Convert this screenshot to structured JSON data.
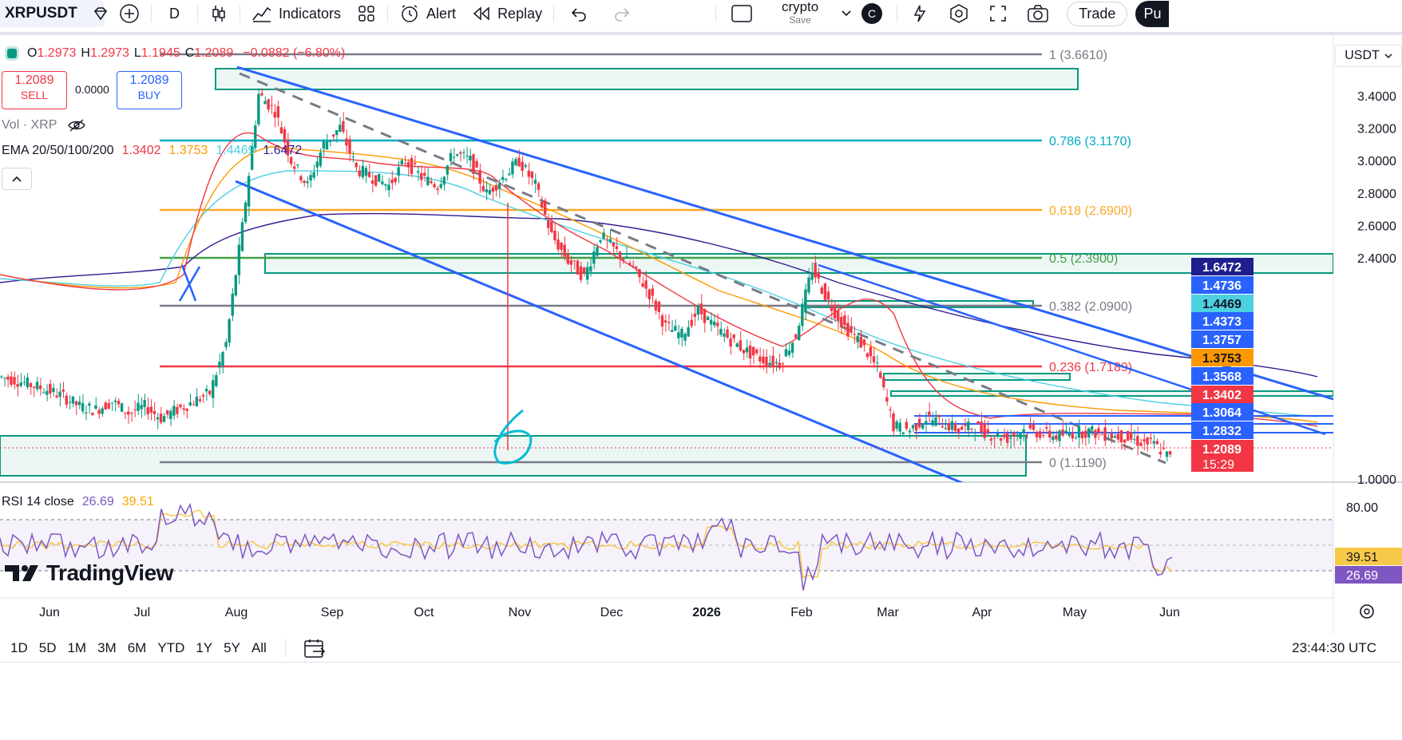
{
  "toolbar": {
    "symbol": "XRPUSDT",
    "interval": "D",
    "indicators": "Indicators",
    "alert": "Alert",
    "replay": "Replay",
    "layout_name": "crypto",
    "layout_save": "Save",
    "avatar": "C",
    "trade": "Trade",
    "publish": "Pu"
  },
  "legend": {
    "ohlc": [
      {
        "k": "O",
        "v": "1.2973"
      },
      {
        "k": "H",
        "v": "1.2973"
      },
      {
        "k": "L",
        "v": "1.1945"
      },
      {
        "k": "C",
        "v": "1.2089"
      }
    ],
    "change": "−0.0882 (−6.80%)",
    "sell_price": "1.2089",
    "sell_label": "SELL",
    "spread": "0.0000",
    "buy_price": "1.2089",
    "buy_label": "BUY",
    "vol": "Vol · XRP",
    "ema_label": "EMA 20/50/100/200",
    "ema_values": [
      {
        "v": "1.3402",
        "color": "#f23645"
      },
      {
        "v": "1.3753",
        "color": "#ff9800"
      },
      {
        "v": "1.4469",
        "color": "#4dd0e1"
      },
      {
        "v": "1.6472",
        "color": "#311b92"
      }
    ],
    "rsi_label": "RSI 14 close",
    "rsi_value": "26.69",
    "rsi_ma_value": "39.51"
  },
  "currency": "USDT",
  "colors": {
    "down": "#f23645",
    "up": "#089981",
    "channel": "#2962ff",
    "zone": "#089981",
    "ema20": "#f23645",
    "ema50": "#ff9800",
    "ema100": "#4dd0e1",
    "ema200": "#311b92",
    "rsi": "#7e57c2",
    "rsi_ma": "#f7c948"
  },
  "chart_data": {
    "type": "candlestick",
    "symbol": "XRPUSDT",
    "timeframe": "1D",
    "y_ticks": [
      3.4,
      3.2,
      3.0,
      2.8,
      2.6,
      2.4,
      1.0
    ],
    "y_tick_labels": [
      "3.4000",
      "3.2000",
      "3.0000",
      "2.8000",
      "2.6000",
      "2.4000",
      "1.0000"
    ],
    "x_labels": [
      "Jun",
      "Jul",
      "Aug",
      "Sep",
      "Oct",
      "Nov",
      "Dec",
      "2026",
      "Feb",
      "Mar",
      "Apr",
      "May",
      "Jun"
    ],
    "price_path": [
      [
        0,
        1.7
      ],
      [
        1,
        1.68
      ],
      [
        2,
        1.65
      ],
      [
        3,
        1.62
      ],
      [
        4,
        1.58
      ],
      [
        5,
        1.52
      ],
      [
        6,
        1.5
      ],
      [
        7,
        1.55
      ],
      [
        8,
        1.48
      ],
      [
        9,
        1.52
      ],
      [
        10,
        1.45
      ],
      [
        11,
        1.5
      ],
      [
        12,
        1.55
      ],
      [
        13,
        1.6
      ],
      [
        14,
        1.9
      ],
      [
        15,
        2.6
      ],
      [
        16,
        3.4
      ],
      [
        17,
        3.3
      ],
      [
        18,
        3.0
      ],
      [
        19,
        2.85
      ],
      [
        20,
        3.1
      ],
      [
        21,
        3.2
      ],
      [
        22,
        2.95
      ],
      [
        23,
        2.9
      ],
      [
        24,
        2.85
      ],
      [
        25,
        3.0
      ],
      [
        26,
        2.9
      ],
      [
        27,
        2.85
      ],
      [
        28,
        3.05
      ],
      [
        29,
        3.0
      ],
      [
        30,
        2.8
      ],
      [
        31,
        2.9
      ],
      [
        32,
        3.0
      ],
      [
        33,
        2.85
      ],
      [
        34,
        2.55
      ],
      [
        35,
        2.4
      ],
      [
        36,
        2.3
      ],
      [
        37,
        2.55
      ],
      [
        38,
        2.45
      ],
      [
        39,
        2.35
      ],
      [
        40,
        2.2
      ],
      [
        41,
        2.0
      ],
      [
        42,
        1.95
      ],
      [
        43,
        2.1
      ],
      [
        44,
        2.0
      ],
      [
        45,
        1.92
      ],
      [
        46,
        1.85
      ],
      [
        47,
        1.8
      ],
      [
        48,
        1.78
      ],
      [
        49,
        1.95
      ],
      [
        50,
        2.35
      ],
      [
        51,
        2.15
      ],
      [
        52,
        2.0
      ],
      [
        53,
        1.9
      ],
      [
        54,
        1.75
      ],
      [
        55,
        1.4
      ],
      [
        56,
        1.38
      ],
      [
        57,
        1.45
      ],
      [
        58,
        1.42
      ],
      [
        59,
        1.38
      ],
      [
        60,
        1.4
      ],
      [
        61,
        1.35
      ],
      [
        62,
        1.33
      ],
      [
        63,
        1.38
      ],
      [
        64,
        1.36
      ],
      [
        65,
        1.34
      ],
      [
        66,
        1.36
      ],
      [
        67,
        1.37
      ],
      [
        68,
        1.35
      ],
      [
        69,
        1.34
      ],
      [
        70,
        1.31
      ],
      [
        71,
        1.29
      ],
      [
        72,
        1.2089
      ]
    ],
    "fib_levels": [
      {
        "label": "1 (3.6610)",
        "color": "#787b86"
      },
      {
        "label": "0.786 (3.1170)",
        "color": "#00acc1"
      },
      {
        "label": "0.618 (2.6900)",
        "color": "#f9a825"
      },
      {
        "label": "0.5 (2.3900)",
        "color": "#43a047"
      },
      {
        "label": "0.382 (2.0900)",
        "color": "#787b86"
      },
      {
        "label": "0.236 (1.7189)",
        "color": "#f23645"
      },
      {
        "label": "0 (1.1190)",
        "color": "#787b86"
      }
    ],
    "price_labels": [
      {
        "v": "1.6472",
        "bg": "#1e1e8c",
        "fg": "#ffffff"
      },
      {
        "v": "1.4736",
        "bg": "#2962ff",
        "fg": "#ffffff"
      },
      {
        "v": "1.4469",
        "bg": "#4dd0e1",
        "fg": "#131722"
      },
      {
        "v": "1.4373",
        "bg": "#2962ff",
        "fg": "#ffffff"
      },
      {
        "v": "1.3757",
        "bg": "#2962ff",
        "fg": "#ffffff"
      },
      {
        "v": "1.3753",
        "bg": "#ff9800",
        "fg": "#131722"
      },
      {
        "v": "1.3568",
        "bg": "#2962ff",
        "fg": "#ffffff"
      },
      {
        "v": "1.3402",
        "bg": "#f23645",
        "fg": "#ffffff"
      },
      {
        "v": "1.3064",
        "bg": "#2962ff",
        "fg": "#ffffff"
      },
      {
        "v": "1.2832",
        "bg": "#2962ff",
        "fg": "#ffffff"
      },
      {
        "v": "1.2089",
        "bg": "#f23645",
        "fg": "#ffffff"
      }
    ],
    "countdown": "15:29",
    "annotation_number": "6",
    "rsi": {
      "ticks": [
        "80.00"
      ],
      "value": "26.69",
      "ma_value": "39.51"
    }
  },
  "bottombar": {
    "timeframes": [
      "1D",
      "5D",
      "1M",
      "3M",
      "6M",
      "YTD",
      "1Y",
      "5Y",
      "All"
    ],
    "clock": "23:44:30 UTC"
  },
  "brand": "TradingView"
}
